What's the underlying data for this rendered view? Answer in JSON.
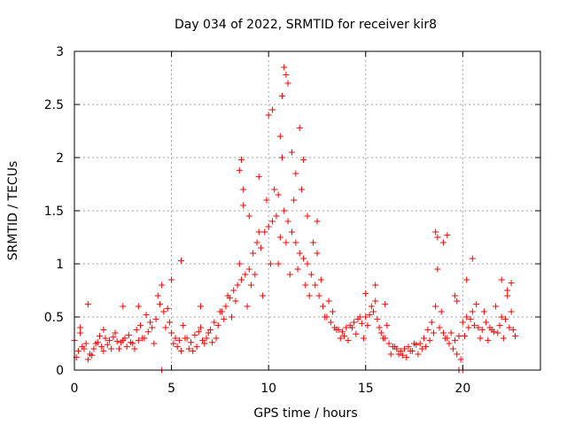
{
  "chart_data": {
    "type": "scatter",
    "title": "Day 034 of 2022, SRMTID for receiver kir8",
    "xlabel": "GPS time / hours",
    "ylabel": "SRMTID / TECUs",
    "xlim": [
      0,
      24
    ],
    "ylim": [
      0,
      3
    ],
    "xticks": [
      0,
      5,
      10,
      15,
      20
    ],
    "xtick_labels": [
      "0",
      "5",
      "10",
      "15",
      "20"
    ],
    "yticks": [
      0,
      0.5,
      1,
      1.5,
      2,
      2.5,
      3
    ],
    "ytick_labels": [
      "0",
      "0.5",
      "1",
      "1.5",
      "2",
      "2.5",
      "3"
    ],
    "grid": true,
    "marker": "+",
    "color": "#ff0000",
    "series": [
      {
        "name": "SRMTID",
        "x": [
          0.0,
          0.2,
          0.4,
          0.6,
          0.8,
          1.0,
          1.2,
          1.4,
          1.6,
          1.8,
          2.0,
          2.2,
          2.4,
          2.6,
          2.8,
          3.0,
          3.2,
          3.4,
          3.6,
          3.8,
          4.0,
          4.2,
          4.4,
          4.6,
          4.8,
          5.0,
          5.2,
          5.4,
          5.6,
          5.8,
          6.0,
          6.2,
          6.4,
          6.6,
          6.8,
          7.0,
          7.2,
          7.4,
          7.6,
          7.8,
          8.0,
          8.2,
          8.4,
          8.6,
          8.8,
          9.0,
          9.2,
          9.4,
          9.6,
          9.8,
          10.0,
          10.2,
          10.4,
          10.6,
          10.8,
          11.0,
          11.2,
          11.4,
          11.6,
          11.8,
          12.0,
          12.2,
          12.4,
          12.6,
          12.8,
          13.0,
          13.2,
          13.4,
          13.6,
          13.8,
          14.0,
          14.2,
          14.4,
          14.6,
          14.8,
          15.0,
          15.2,
          15.4,
          15.6,
          15.8,
          16.0,
          16.2,
          16.4,
          16.6,
          16.8,
          17.0,
          17.2,
          17.4,
          17.6,
          17.8,
          18.0,
          18.2,
          18.4,
          18.6,
          18.8,
          19.0,
          19.2,
          19.4,
          19.6,
          19.8,
          20.0,
          20.2,
          20.4,
          20.6,
          20.8,
          21.0,
          21.2,
          21.4,
          21.6,
          21.8,
          22.0,
          22.2,
          22.4,
          22.6,
          0.1,
          0.3,
          0.5,
          0.7,
          0.9,
          1.1,
          1.3,
          1.5,
          1.7,
          1.9,
          2.1,
          2.3,
          2.5,
          2.7,
          2.9,
          3.1,
          3.3,
          3.5,
          3.7,
          3.9,
          4.1,
          4.3,
          4.5,
          4.7,
          4.9,
          5.1,
          5.3,
          5.5,
          5.7,
          5.9,
          6.1,
          6.3,
          6.5,
          6.7,
          6.9,
          7.1,
          7.3,
          7.5,
          7.7,
          7.9,
          8.1,
          8.3,
          8.5,
          8.7,
          8.9,
          9.1,
          9.3,
          9.5,
          9.7,
          9.9,
          10.1,
          10.3,
          10.5,
          10.7,
          10.9,
          11.1,
          11.3,
          11.5,
          11.7,
          11.9,
          12.1,
          12.3,
          12.5,
          12.7,
          12.9,
          13.1,
          13.3,
          13.5,
          13.7,
          13.9,
          14.1,
          14.3,
          14.5,
          14.7,
          14.9,
          15.1,
          15.3,
          15.5,
          15.7,
          15.9,
          16.1,
          16.3,
          16.5,
          16.7,
          16.9,
          17.1,
          17.3,
          17.5,
          17.7,
          17.9,
          18.1,
          18.3,
          18.5,
          18.7,
          18.9,
          19.1,
          19.3,
          19.5,
          19.7,
          19.9,
          20.1,
          20.3,
          20.5,
          20.7,
          20.9,
          21.1,
          21.3,
          21.5,
          21.7,
          21.9,
          22.1,
          22.3,
          22.5,
          22.7,
          0.3,
          0.7,
          1.5,
          2.5,
          3.3,
          4.5,
          5.0,
          5.5,
          6.5,
          8.5,
          8.6,
          8.7,
          9.0,
          9.5,
          10.0,
          10.2,
          10.5,
          10.6,
          10.7,
          10.8,
          10.9,
          11.0,
          11.2,
          11.4,
          11.6,
          11.8,
          12.0,
          12.5,
          15.0,
          15.5,
          16.0,
          18.6,
          18.7,
          19.0,
          19.2,
          19.6,
          19.7,
          19.8,
          20.0,
          20.2,
          20.5,
          22.0,
          22.3,
          22.5
        ],
        "y": [
          0.28,
          0.18,
          0.22,
          0.25,
          0.15,
          0.2,
          0.26,
          0.22,
          0.3,
          0.28,
          0.31,
          0.27,
          0.26,
          0.3,
          0.33,
          0.25,
          0.38,
          0.42,
          0.3,
          0.36,
          0.4,
          0.48,
          0.62,
          0.55,
          0.58,
          0.35,
          0.3,
          0.28,
          0.42,
          0.3,
          0.26,
          0.33,
          0.36,
          0.28,
          0.3,
          0.38,
          0.45,
          0.42,
          0.55,
          0.6,
          0.68,
          0.75,
          0.8,
          0.85,
          0.9,
          0.95,
          1.1,
          1.2,
          1.15,
          1.3,
          1.35,
          1.4,
          1.45,
          1.25,
          1.5,
          1.4,
          1.3,
          1.2,
          1.1,
          1.05,
          1.0,
          0.9,
          0.8,
          0.7,
          0.6,
          0.5,
          0.45,
          0.4,
          0.38,
          0.36,
          0.4,
          0.42,
          0.45,
          0.48,
          0.44,
          0.5,
          0.52,
          0.55,
          0.48,
          0.35,
          0.3,
          0.25,
          0.22,
          0.2,
          0.18,
          0.2,
          0.22,
          0.18,
          0.24,
          0.25,
          0.3,
          0.38,
          0.45,
          0.6,
          0.4,
          0.35,
          0.3,
          0.35,
          0.28,
          0.32,
          0.45,
          0.5,
          0.48,
          0.42,
          0.4,
          0.38,
          0.45,
          0.4,
          0.36,
          0.35,
          0.5,
          0.48,
          0.4,
          0.38,
          0.12,
          0.35,
          0.2,
          0.1,
          0.14,
          0.25,
          0.32,
          0.18,
          0.24,
          0.2,
          0.35,
          0.2,
          0.28,
          0.22,
          0.26,
          0.2,
          0.28,
          0.3,
          0.52,
          0.45,
          0.25,
          0.7,
          0.8,
          0.4,
          0.45,
          0.25,
          0.22,
          0.18,
          0.3,
          0.2,
          0.18,
          0.22,
          0.4,
          0.25,
          0.35,
          0.26,
          0.3,
          0.55,
          0.48,
          0.7,
          0.5,
          0.65,
          1.0,
          1.7,
          0.6,
          0.8,
          0.9,
          1.3,
          0.7,
          1.6,
          1.0,
          1.7,
          1.0,
          2.0,
          1.2,
          0.9,
          1.6,
          0.95,
          1.7,
          0.8,
          0.7,
          1.2,
          1.4,
          0.85,
          0.5,
          0.65,
          0.55,
          0.38,
          0.3,
          0.32,
          0.28,
          0.4,
          0.34,
          0.5,
          0.3,
          0.42,
          0.6,
          0.65,
          0.4,
          0.3,
          0.42,
          0.15,
          0.22,
          0.15,
          0.14,
          0.12,
          0.18,
          0.25,
          0.15,
          0.2,
          0.22,
          0.28,
          0.35,
          0.95,
          0.55,
          0.3,
          0.25,
          0.2,
          0.15,
          0.1,
          0.32,
          0.4,
          0.55,
          0.62,
          0.3,
          0.55,
          0.28,
          0.38,
          0.6,
          0.42,
          0.3,
          0.7,
          0.55,
          0.32,
          0.4,
          0.62,
          0.38,
          0.6,
          0.6,
          0.0,
          0.85,
          1.03,
          0.6,
          1.88,
          1.98,
          1.55,
          1.45,
          1.82,
          2.4,
          2.45,
          1.65,
          2.2,
          2.58,
          2.85,
          2.78,
          2.7,
          2.05,
          1.85,
          2.28,
          1.98,
          1.45,
          1.1,
          0.72,
          0.8,
          0.62,
          1.3,
          1.25,
          1.2,
          1.27,
          0.7,
          0.65,
          0.0,
          0.0,
          0.85,
          1.05,
          0.85,
          0.75,
          0.82
        ]
      }
    ]
  }
}
